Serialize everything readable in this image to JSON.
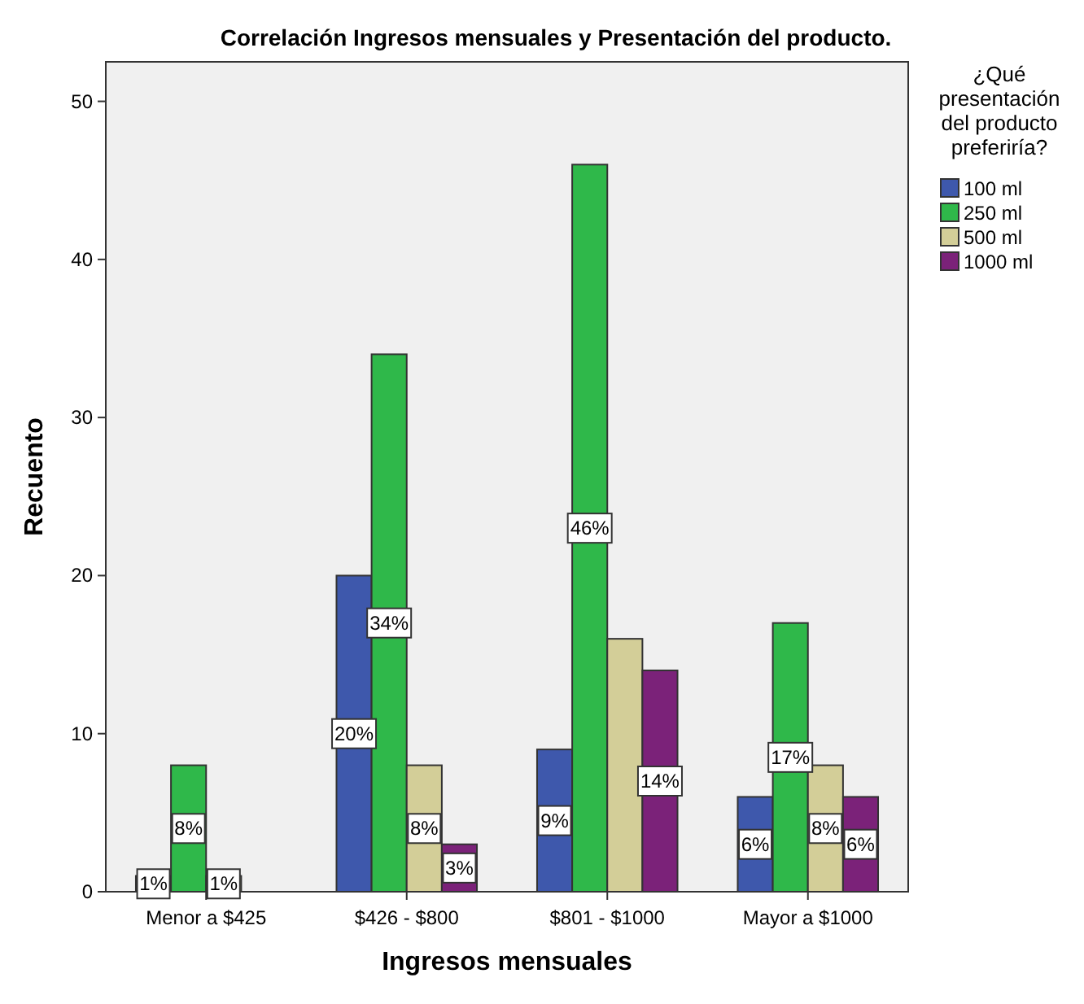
{
  "chart_data": {
    "type": "bar",
    "title": "Correlación Ingresos mensuales y Presentación del producto.",
    "xlabel": "Ingresos mensuales",
    "ylabel": "Recuento",
    "legend_title": "¿Qué presentación del producto preferiría?",
    "legend": "right",
    "grid": false,
    "categories": [
      "Menor a $425",
      "$426 - $800",
      "$801 - $1000",
      "Mayor a $1000"
    ],
    "series": [
      {
        "name": "100 ml",
        "color": "#3e58ac",
        "values": [
          1,
          20,
          9,
          6
        ],
        "value_labels": [
          "1%",
          "20%",
          "9%",
          "6%"
        ]
      },
      {
        "name": "250 ml",
        "color": "#2fb84a",
        "values": [
          8,
          34,
          46,
          17
        ],
        "value_labels": [
          "8%",
          "34%",
          "46%",
          "17%"
        ]
      },
      {
        "name": "500 ml",
        "color": "#d3ce98",
        "values": [
          1,
          8,
          16,
          8
        ],
        "value_labels": [
          "1%",
          "8%",
          null,
          "8%"
        ]
      },
      {
        "name": "1000 ml",
        "color": "#7b2279",
        "values": [
          null,
          3,
          14,
          6
        ],
        "value_labels": [
          null,
          "3%",
          "14%",
          "6%"
        ]
      }
    ],
    "ylim": [
      0,
      52.5
    ],
    "yticks": [
      0,
      10,
      20,
      30,
      40,
      50
    ]
  }
}
